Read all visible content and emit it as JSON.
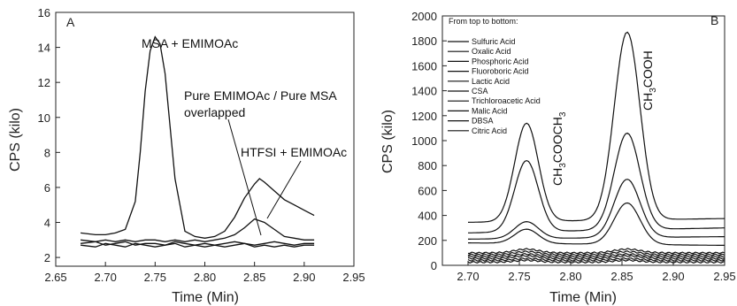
{
  "chart_data": [
    {
      "type": "line",
      "panel": "A",
      "xlabel": "Time (Min)",
      "ylabel": "CPS (kilo)",
      "xlim": [
        2.65,
        2.95
      ],
      "ylim": [
        1.5,
        16
      ],
      "xticks": [
        "2.65",
        "2.70",
        "2.75",
        "2.80",
        "2.85",
        "2.90",
        "2.95"
      ],
      "yticks": [
        "2",
        "4",
        "6",
        "8",
        "10",
        "12",
        "14",
        "16"
      ],
      "annotations": [
        "MSA + EMIMOAc",
        "Pure EMIMOAc / Pure MSA",
        "overlapped",
        "HTFSI + EMIMOAc"
      ],
      "series": [
        {
          "x": [
            2.675,
            2.69,
            2.7,
            2.71,
            2.72,
            2.73,
            2.735,
            2.74,
            2.745,
            2.75,
            2.755,
            2.76,
            2.765,
            2.77,
            2.78,
            2.79,
            2.8,
            2.81,
            2.82,
            2.83,
            2.84,
            2.85,
            2.855,
            2.86,
            2.87,
            2.88,
            2.89,
            2.9,
            2.91
          ],
          "y": [
            3.4,
            3.3,
            3.3,
            3.4,
            3.6,
            5.2,
            8.0,
            11.5,
            13.8,
            14.6,
            14.2,
            12.5,
            9.5,
            6.5,
            3.5,
            3.2,
            3.1,
            3.2,
            3.5,
            4.3,
            5.4,
            6.2,
            6.5,
            6.3,
            5.8,
            5.3,
            5.0,
            4.7,
            4.4
          ]
        },
        {
          "x": [
            2.675,
            2.69,
            2.7,
            2.71,
            2.72,
            2.73,
            2.74,
            2.75,
            2.76,
            2.77,
            2.78,
            2.79,
            2.8,
            2.81,
            2.82,
            2.83,
            2.84,
            2.85,
            2.86,
            2.87,
            2.88,
            2.89,
            2.9,
            2.91
          ],
          "y": [
            3.0,
            2.9,
            3.0,
            2.9,
            3.0,
            2.9,
            3.0,
            3.0,
            2.9,
            3.0,
            2.9,
            3.0,
            2.9,
            3.0,
            3.1,
            3.3,
            3.7,
            4.2,
            4.0,
            3.6,
            3.2,
            3.1,
            3.0,
            3.0
          ]
        },
        {
          "x": [
            2.675,
            2.69,
            2.7,
            2.71,
            2.72,
            2.73,
            2.74,
            2.75,
            2.76,
            2.77,
            2.78,
            2.79,
            2.8,
            2.81,
            2.82,
            2.83,
            2.84,
            2.85,
            2.86,
            2.87,
            2.88,
            2.89,
            2.9,
            2.91
          ],
          "y": [
            2.8,
            2.9,
            2.7,
            2.8,
            2.9,
            2.7,
            2.8,
            2.8,
            2.7,
            2.9,
            2.8,
            2.7,
            2.8,
            2.7,
            2.8,
            2.9,
            2.8,
            2.7,
            2.8,
            2.9,
            2.8,
            2.7,
            2.8,
            2.8
          ]
        },
        {
          "x": [
            2.675,
            2.69,
            2.7,
            2.71,
            2.72,
            2.73,
            2.74,
            2.75,
            2.76,
            2.77,
            2.78,
            2.79,
            2.8,
            2.81,
            2.82,
            2.83,
            2.84,
            2.85,
            2.86,
            2.87,
            2.88,
            2.89,
            2.9,
            2.91
          ],
          "y": [
            2.7,
            2.6,
            2.8,
            2.7,
            2.6,
            2.8,
            2.7,
            2.6,
            2.7,
            2.8,
            2.6,
            2.7,
            2.6,
            2.7,
            2.6,
            2.7,
            2.8,
            2.6,
            2.7,
            2.6,
            2.7,
            2.6,
            2.7,
            2.7
          ]
        }
      ]
    },
    {
      "type": "line",
      "panel": "B",
      "xlabel": "Time (Min)",
      "ylabel": "CPS (kilo)",
      "xlim": [
        2.675,
        2.95
      ],
      "ylim": [
        0,
        2000
      ],
      "xticks": [
        "2.70",
        "2.75",
        "2.80",
        "2.85",
        "2.90",
        "2.95"
      ],
      "yticks": [
        "0",
        "200",
        "400",
        "600",
        "800",
        "1000",
        "1200",
        "1400",
        "1600",
        "1800",
        "2000"
      ],
      "legend_title": "From top to bottom:",
      "legend_position": "top-left",
      "peak_labels": [
        "CH3COOCH3",
        "CH3COOH"
      ],
      "series": [
        {
          "name": "Sulfuric Acid",
          "peak1": 1140,
          "peak2": 1870,
          "base_start": 345,
          "base_end": 375
        },
        {
          "name": "Oxalic Acid",
          "peak1": 840,
          "peak2": 1060,
          "base_start": 260,
          "base_end": 300
        },
        {
          "name": "Phosphoric Acid",
          "peak1": 350,
          "peak2": 690,
          "base_start": 210,
          "base_end": 230
        },
        {
          "name": "Fluoroboric Acid",
          "peak1": 290,
          "peak2": 500,
          "base_start": 180,
          "base_end": 160
        },
        {
          "name": "Lactic Acid",
          "peak1": 130,
          "peak2": 130,
          "base_start": 100,
          "base_end": 100
        },
        {
          "name": "CSA",
          "peak1": 110,
          "peak2": 110,
          "base_start": 85,
          "base_end": 85
        },
        {
          "name": "Trichloroacetic Acid",
          "peak1": 90,
          "peak2": 90,
          "base_start": 70,
          "base_end": 70
        },
        {
          "name": "Malic Acid",
          "peak1": 75,
          "peak2": 75,
          "base_start": 55,
          "base_end": 55
        },
        {
          "name": "DBSA",
          "peak1": 55,
          "peak2": 55,
          "base_start": 40,
          "base_end": 40
        },
        {
          "name": "Citric Acid",
          "peak1": 40,
          "peak2": 40,
          "base_start": 25,
          "base_end": 25
        }
      ]
    }
  ]
}
